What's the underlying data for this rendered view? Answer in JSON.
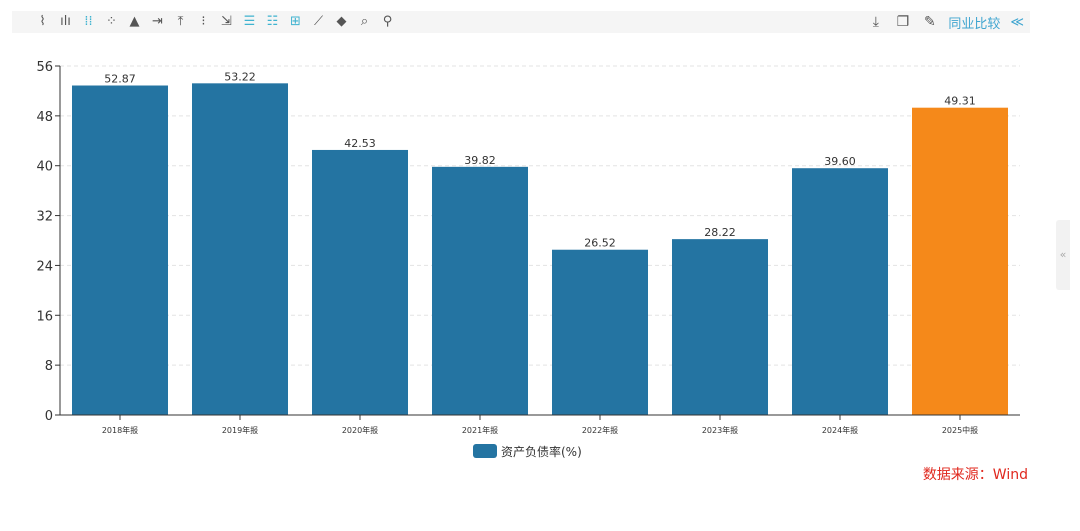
{
  "toolbar": {
    "left_icons": [
      "line-chart-icon",
      "bar-chart-icon",
      "grouped-bar-icon",
      "scatter-icon",
      "area-chart-icon",
      "align-right-icon",
      "align-top-icon",
      "dotted-list-icon",
      "step-right-icon",
      "list-icon",
      "tree-list-icon",
      "table-grid-icon",
      "trend-line-icon",
      "fill-bucket-icon",
      "zoom-icon",
      "wrench-icon"
    ],
    "active_icons": [
      2,
      9,
      10,
      11
    ],
    "right_icons": [
      "download-icon",
      "copy-icon",
      "edit-icon"
    ],
    "peer_compare": "同业比较",
    "collapse": "≪"
  },
  "side_handle": "«",
  "source": "数据来源：Wind",
  "chart_data": {
    "type": "bar",
    "categories": [
      "2018年报",
      "2019年报",
      "2020年报",
      "2021年报",
      "2022年报",
      "2023年报",
      "2024年报",
      "2025中报"
    ],
    "series": [
      {
        "name": "资产负债率(%)",
        "values": [
          52.87,
          53.22,
          42.53,
          39.82,
          26.52,
          28.22,
          39.6,
          49.31
        ]
      }
    ],
    "data_labels": [
      "52.87",
      "53.22",
      "42.53",
      "39.82",
      "26.52",
      "28.22",
      "39.60",
      "49.31"
    ],
    "ylim": [
      0,
      56
    ],
    "yticks": [
      0,
      8,
      16,
      24,
      32,
      40,
      48,
      56
    ],
    "grid": true,
    "legend": "bottom",
    "colors": {
      "default": "#2474a2",
      "highlight": "#f5891a"
    },
    "highlight_index": 7
  }
}
